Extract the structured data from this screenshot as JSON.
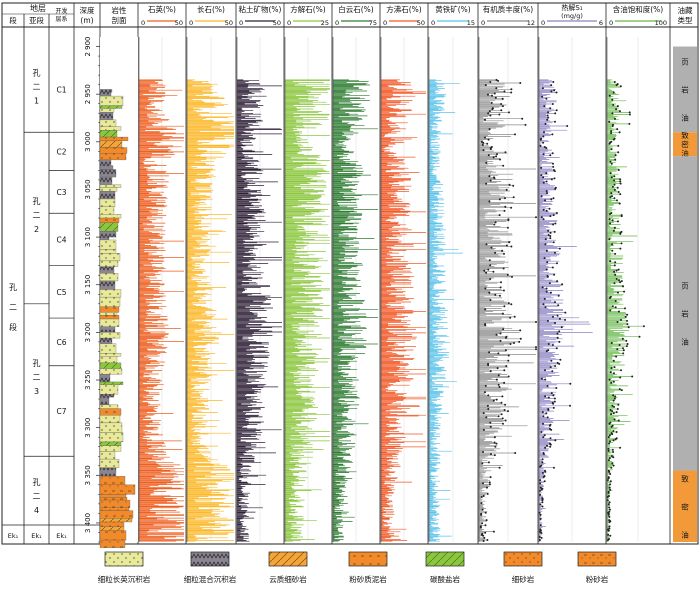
{
  "header": {
    "stratum": "地层",
    "member": "段",
    "submember": "亚段",
    "devlayer": "开发层系",
    "depth": "深度(m)",
    "lith": "岩性剖面",
    "reservoir": "油藏类型"
  },
  "strat": {
    "member_label": "孔二段",
    "submembers": [
      {
        "label": "孔二1",
        "top": 2900,
        "bottom": 2990
      },
      {
        "label": "孔二2",
        "top": 2990,
        "bottom": 3170
      },
      {
        "label": "孔二3",
        "top": 3170,
        "bottom": 3330
      },
      {
        "label": "孔二4",
        "top": 3330,
        "bottom": 3420
      }
    ],
    "layers": [
      {
        "label": "C1",
        "top": 2900,
        "bottom": 2990
      },
      {
        "label": "C2",
        "top": 2990,
        "bottom": 3030
      },
      {
        "label": "C3",
        "top": 3030,
        "bottom": 3075
      },
      {
        "label": "C4",
        "top": 3075,
        "bottom": 3130
      },
      {
        "label": "C5",
        "top": 3130,
        "bottom": 3185
      },
      {
        "label": "C6",
        "top": 3185,
        "bottom": 3235
      },
      {
        "label": "C7",
        "top": 3235,
        "bottom": 3330
      }
    ],
    "base_label": "Ek₁",
    "reservoir": [
      {
        "label": "页岩油",
        "top": 2900,
        "bottom": 2990,
        "type": "shale"
      },
      {
        "label": "致密油",
        "top": 2990,
        "bottom": 3015,
        "type": "tight"
      },
      {
        "label": "页岩油",
        "top": 3015,
        "bottom": 3345,
        "type": "shale"
      },
      {
        "label": "致密油",
        "top": 3345,
        "bottom": 3420,
        "type": "tight"
      }
    ]
  },
  "chart_data": {
    "type": "well_log",
    "depth_axis": {
      "min": 2890,
      "max": 3420,
      "ticks": [
        2900,
        2950,
        3000,
        3050,
        3100,
        3150,
        3200,
        3250,
        3300,
        3350,
        3400
      ],
      "tick_labels": [
        "2 900",
        "2 950",
        "3 000",
        "3 050",
        "3 100",
        "3 150",
        "3 200",
        "3 250",
        "3 300",
        "3 350",
        "3 400"
      ]
    },
    "tracks": [
      {
        "key": "quartz",
        "title": "石英(%)",
        "min": 0,
        "max": 50,
        "scale_labels": [
          "0",
          "50"
        ],
        "color": "#ef5f1f",
        "kind": "bars",
        "profile": [
          [
            2900,
            14
          ],
          [
            2930,
            16
          ],
          [
            2960,
            16
          ],
          [
            2985,
            20
          ],
          [
            2995,
            35
          ],
          [
            3005,
            28
          ],
          [
            3020,
            18
          ],
          [
            3060,
            18
          ],
          [
            3100,
            16
          ],
          [
            3150,
            16
          ],
          [
            3200,
            18
          ],
          [
            3250,
            15
          ],
          [
            3300,
            14
          ],
          [
            3330,
            18
          ],
          [
            3345,
            32
          ],
          [
            3370,
            36
          ],
          [
            3400,
            34
          ],
          [
            3420,
            30
          ]
        ]
      },
      {
        "key": "feldspar",
        "title": "长石(%)",
        "min": 0,
        "max": 50,
        "scale_labels": [
          "0",
          "50"
        ],
        "color": "#fcb827",
        "kind": "bars",
        "profile": [
          [
            2900,
            12
          ],
          [
            2950,
            22
          ],
          [
            2985,
            30
          ],
          [
            2995,
            40
          ],
          [
            3005,
            33
          ],
          [
            3020,
            18
          ],
          [
            3060,
            15
          ],
          [
            3100,
            14
          ],
          [
            3150,
            15
          ],
          [
            3200,
            20
          ],
          [
            3250,
            14
          ],
          [
            3300,
            12
          ],
          [
            3330,
            16
          ],
          [
            3345,
            28
          ],
          [
            3370,
            30
          ],
          [
            3400,
            28
          ],
          [
            3420,
            25
          ]
        ]
      },
      {
        "key": "clay",
        "title": "粘土矿物(%)",
        "min": 0,
        "max": 50,
        "scale_labels": [
          "0",
          "50"
        ],
        "color": "#2f2138",
        "kind": "bars",
        "profile": [
          [
            2900,
            14
          ],
          [
            2950,
            18
          ],
          [
            2990,
            16
          ],
          [
            3000,
            10
          ],
          [
            3030,
            16
          ],
          [
            3100,
            18
          ],
          [
            3150,
            20
          ],
          [
            3200,
            24
          ],
          [
            3250,
            18
          ],
          [
            3300,
            16
          ],
          [
            3340,
            10
          ],
          [
            3370,
            8
          ],
          [
            3420,
            8
          ]
        ]
      },
      {
        "key": "calcite",
        "title": "方解石(%)",
        "min": 0,
        "max": 25,
        "scale_labels": [
          "0",
          "25"
        ],
        "color": "#8cc63f",
        "kind": "bars",
        "profile": [
          [
            2900,
            14
          ],
          [
            2950,
            16
          ],
          [
            2990,
            12
          ],
          [
            3000,
            8
          ],
          [
            3030,
            14
          ],
          [
            3100,
            14
          ],
          [
            3150,
            12
          ],
          [
            3200,
            12
          ],
          [
            3250,
            10
          ],
          [
            3300,
            10
          ],
          [
            3340,
            8
          ],
          [
            3370,
            6
          ],
          [
            3420,
            6
          ]
        ]
      },
      {
        "key": "dolomite",
        "title": "白云石(%)",
        "min": 0,
        "max": 75,
        "scale_labels": [
          "0",
          "75"
        ],
        "color": "#2f7d32",
        "kind": "bars",
        "profile": [
          [
            2900,
            40
          ],
          [
            2950,
            36
          ],
          [
            2990,
            30
          ],
          [
            3000,
            14
          ],
          [
            3030,
            28
          ],
          [
            3100,
            26
          ],
          [
            3150,
            28
          ],
          [
            3200,
            32
          ],
          [
            3250,
            26
          ],
          [
            3300,
            22
          ],
          [
            3340,
            18
          ],
          [
            3370,
            10
          ],
          [
            3420,
            10
          ]
        ]
      },
      {
        "key": "analcime",
        "title": "方沸石(%)",
        "min": 0,
        "max": 50,
        "scale_labels": [
          "0",
          "50"
        ],
        "color": "#f05a28",
        "kind": "bars",
        "profile": [
          [
            2900,
            18
          ],
          [
            2950,
            22
          ],
          [
            2990,
            16
          ],
          [
            3000,
            8
          ],
          [
            3030,
            18
          ],
          [
            3100,
            20
          ],
          [
            3150,
            20
          ],
          [
            3200,
            22
          ],
          [
            3250,
            20
          ],
          [
            3300,
            16
          ],
          [
            3340,
            12
          ],
          [
            3370,
            8
          ],
          [
            3420,
            8
          ]
        ]
      },
      {
        "key": "pyrite",
        "title": "黄铁矿(%)",
        "min": 0,
        "max": 15,
        "scale_labels": [
          "0",
          "15"
        ],
        "color": "#5bc3ec",
        "kind": "bars",
        "profile": [
          [
            2900,
            2
          ],
          [
            2950,
            3
          ],
          [
            3000,
            2
          ],
          [
            3100,
            3
          ],
          [
            3150,
            3
          ],
          [
            3200,
            4
          ],
          [
            3250,
            3
          ],
          [
            3300,
            2
          ],
          [
            3350,
            2
          ],
          [
            3420,
            2
          ]
        ]
      },
      {
        "key": "toc",
        "title": "有机质丰度(%)",
        "min": 0,
        "max": 12,
        "scale_labels": [
          "0",
          "12"
        ],
        "color": "#8a8a8a",
        "kind": "lollipop",
        "profile": [
          [
            2900,
            3
          ],
          [
            2950,
            4
          ],
          [
            2990,
            3
          ],
          [
            3000,
            1
          ],
          [
            3030,
            4
          ],
          [
            3100,
            4
          ],
          [
            3150,
            4
          ],
          [
            3200,
            5
          ],
          [
            3250,
            4
          ],
          [
            3300,
            3
          ],
          [
            3340,
            2
          ],
          [
            3370,
            1
          ],
          [
            3420,
            1
          ]
        ]
      },
      {
        "key": "s1",
        "title": "热解S₁",
        "unit": "(mg/g)",
        "min": 0,
        "max": 6,
        "scale_labels": [
          "0",
          "6"
        ],
        "color": "#8a82c4",
        "kind": "lollipop",
        "profile": [
          [
            2900,
            0.6
          ],
          [
            2950,
            1.0
          ],
          [
            2990,
            0.8
          ],
          [
            3000,
            0.4
          ],
          [
            3030,
            0.8
          ],
          [
            3100,
            1.0
          ],
          [
            3150,
            1.2
          ],
          [
            3200,
            1.4
          ],
          [
            3250,
            1.0
          ],
          [
            3300,
            0.8
          ],
          [
            3340,
            0.4
          ],
          [
            3370,
            0.2
          ],
          [
            3420,
            0.2
          ]
        ]
      },
      {
        "key": "so",
        "title": "含油饱和度(%)",
        "min": 0,
        "max": 100,
        "scale_labels": [
          "0",
          "100"
        ],
        "color": "#66b84a",
        "kind": "lollipop",
        "profile": [
          [
            2900,
            10
          ],
          [
            2950,
            14
          ],
          [
            2990,
            12
          ],
          [
            3000,
            6
          ],
          [
            3030,
            12
          ],
          [
            3100,
            14
          ],
          [
            3150,
            16
          ],
          [
            3200,
            20
          ],
          [
            3250,
            14
          ],
          [
            3300,
            10
          ],
          [
            3340,
            6
          ],
          [
            3370,
            3
          ],
          [
            3420,
            3
          ]
        ]
      }
    ]
  },
  "legend": [
    {
      "label": "细粒长英沉积岩",
      "color": "#e8ea9a",
      "pattern": "dots"
    },
    {
      "label": "细粒混合沉积岩",
      "color": "#8a8590",
      "pattern": "zigzag"
    },
    {
      "label": "云质细砂岩",
      "color": "#f4a53a",
      "pattern": "slash"
    },
    {
      "label": "粉砂质泥岩",
      "color": "#f28a2a",
      "pattern": "dash"
    },
    {
      "label": "碳酸盐岩",
      "color": "#8cc63f",
      "pattern": "slash"
    },
    {
      "label": "细砂岩",
      "color": "#f28a2a",
      "pattern": "dots"
    },
    {
      "label": "粉砂岩",
      "color": "#f28a2a",
      "pattern": "dashdot"
    }
  ]
}
